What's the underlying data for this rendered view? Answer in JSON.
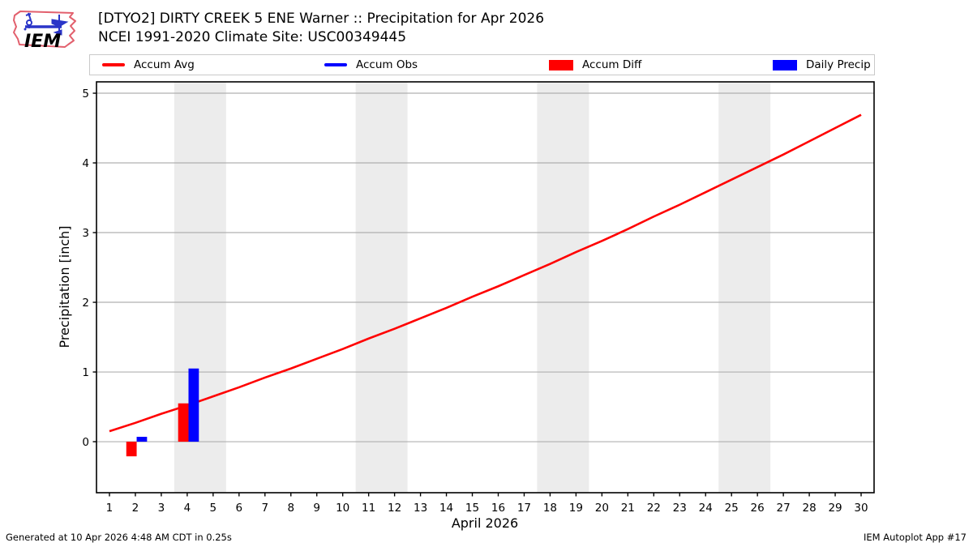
{
  "header": {
    "title_line1": "[DTYO2] DIRTY CREEK 5 ENE Warner :: Precipitation for Apr 2026",
    "title_line2": "NCEI 1991-2020 Climate Site: USC00349445",
    "logo_text": "IEM"
  },
  "legend": {
    "items": [
      {
        "label": "Accum Avg",
        "swatch": "line",
        "color": "#ff0000"
      },
      {
        "label": "Accum Obs",
        "swatch": "line",
        "color": "#0000ff"
      },
      {
        "label": "Accum Diff",
        "swatch": "rect",
        "color": "#ff0000"
      },
      {
        "label": "Daily Precip",
        "swatch": "rect",
        "color": "#0000ff"
      }
    ]
  },
  "footer": {
    "left": "Generated at 10 Apr 2026 4:48 AM CDT in 0.25s",
    "right": "IEM Autoplot App #17"
  },
  "chart_data": {
    "type": "line+bar",
    "title": "[DTYO2] DIRTY CREEK 5 ENE Warner :: Precipitation for Apr 2026",
    "subtitle": "NCEI 1991-2020 Climate Site: USC00349445",
    "xlabel": "April 2026",
    "ylabel": "Precipitation [inch]",
    "xlim": [
      0.5,
      30.5
    ],
    "ylim": [
      -0.732,
      5.163
    ],
    "x_ticks": [
      1,
      2,
      3,
      4,
      5,
      6,
      7,
      8,
      9,
      10,
      11,
      12,
      13,
      14,
      15,
      16,
      17,
      18,
      19,
      20,
      21,
      22,
      23,
      24,
      25,
      26,
      27,
      28,
      29,
      30
    ],
    "y_ticks": [
      0,
      1,
      2,
      3,
      4,
      5
    ],
    "grid": "horizontal-only",
    "grid_color": "#b0b0b0",
    "band_color": "#ececec",
    "weekend_bands": [
      [
        3.5,
        5.5
      ],
      [
        10.5,
        12.5
      ],
      [
        17.5,
        19.5
      ],
      [
        24.5,
        26.5
      ]
    ],
    "series": [
      {
        "name": "Accum Avg",
        "type": "line",
        "color": "#ff0000",
        "line_width": 2.6,
        "x": [
          1,
          2,
          3,
          4,
          5,
          6,
          7,
          8,
          9,
          10,
          11,
          12,
          13,
          14,
          15,
          16,
          17,
          18,
          19,
          20,
          21,
          22,
          23,
          24,
          25,
          26,
          27,
          28,
          29,
          30
        ],
        "values": [
          0.15,
          0.27,
          0.4,
          0.52,
          0.65,
          0.78,
          0.92,
          1.05,
          1.19,
          1.33,
          1.48,
          1.62,
          1.77,
          1.92,
          2.08,
          2.23,
          2.39,
          2.55,
          2.72,
          2.88,
          3.05,
          3.23,
          3.4,
          3.58,
          3.76,
          3.94,
          4.12,
          4.31,
          4.5,
          4.69
        ]
      },
      {
        "name": "Accum Obs",
        "type": "line",
        "color": "#0000ff",
        "line_width": 2.6,
        "x": [],
        "values": []
      },
      {
        "name": "Accum Diff",
        "type": "bar",
        "color": "#ff0000",
        "offset": -0.35,
        "bar_width": 0.4,
        "x": [
          2,
          4
        ],
        "values": [
          -0.21,
          0.55
        ]
      },
      {
        "name": "Daily Precip",
        "type": "bar",
        "color": "#0000ff",
        "offset": 0.05,
        "bar_width": 0.4,
        "x": [
          2,
          4
        ],
        "values": [
          0.07,
          1.05
        ]
      }
    ]
  }
}
